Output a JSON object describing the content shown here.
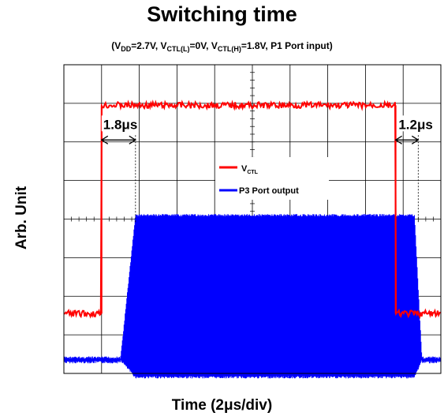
{
  "chart_data": {
    "type": "line",
    "title": "Switching time",
    "subtitle": {
      "vdd_label": "V",
      "vdd_sub": "DD",
      "vdd_value": "=2.7V, ",
      "ctll_label": "V",
      "ctll_sub": "CTL(L)",
      "ctll_value": "=0V, ",
      "ctlh_label": "V",
      "ctlh_sub": "CTL(H)",
      "ctlh_value": "=1.8V, P1 Port  input)",
      "open": "("
    },
    "xlabel": "Time (2μs/div)",
    "ylabel": "Arb. Unit",
    "grid": true,
    "divisions": {
      "x": 10,
      "y": 8
    },
    "legend": {
      "placement": "center",
      "entries": [
        {
          "name": "V",
          "sub": "CTL",
          "color": "#ff0000"
        },
        {
          "name": "P3 Port output",
          "color": "#0000ff"
        }
      ]
    },
    "annotations": [
      {
        "text": "1.8μs",
        "from_div": 1.0,
        "to_div": 1.9
      },
      {
        "text": "1.2μs",
        "from_div": 8.8,
        "to_div": 9.4
      }
    ],
    "series": [
      {
        "name": "V_CTL",
        "color": "#ff0000",
        "low_div": 1.55,
        "high_div": 6.95,
        "rise_div": 1.0,
        "fall_div": 8.8,
        "noise_div": 0.08
      },
      {
        "name": "P3 Port output",
        "color": "#0000ff",
        "low_div": 0.35,
        "envelope_top_div": 4.1,
        "envelope_bottom_div": -0.1,
        "rise_start_div": 1.5,
        "rise_end_div": 1.9,
        "fall_start_div": 9.3,
        "fall_end_div": 9.5,
        "noise_div": 0.06
      }
    ]
  }
}
